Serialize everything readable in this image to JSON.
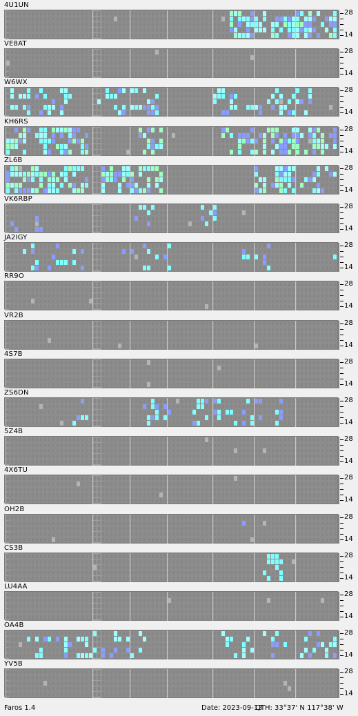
{
  "app_name": "Faros 1.4",
  "date_text": "Date: 2023-09-13",
  "qth_text": "QTH: 33°37' N  117°38' W",
  "axis": {
    "top_label": "28",
    "bottom_label": "14"
  },
  "colors": {
    "grid_bg": "#808080",
    "cell_empty": "#8a8a8a",
    "cell_line": "#9c9c9c",
    "highlight": "#a0a0a0",
    "cyan": "#7fffff",
    "light_cyan": "#9fffff",
    "blue": "#8a9cff",
    "green": "#9fffc0"
  },
  "beacons": [
    {
      "callsign": "4U1UN"
    },
    {
      "callsign": "VE8AT"
    },
    {
      "callsign": "W6WX"
    },
    {
      "callsign": "KH6RS"
    },
    {
      "callsign": "ZL6B"
    },
    {
      "callsign": "VK6RBP"
    },
    {
      "callsign": "JA2IGY"
    },
    {
      "callsign": "RR9O"
    },
    {
      "callsign": "VR2B"
    },
    {
      "callsign": "4S7B"
    },
    {
      "callsign": "ZS6DN"
    },
    {
      "callsign": "5Z4B"
    },
    {
      "callsign": "4X6TU"
    },
    {
      "callsign": "OH2B"
    },
    {
      "callsign": "CS3B"
    },
    {
      "callsign": "LU4AA"
    },
    {
      "callsign": "OA4B"
    },
    {
      "callsign": "YV5B"
    }
  ]
}
